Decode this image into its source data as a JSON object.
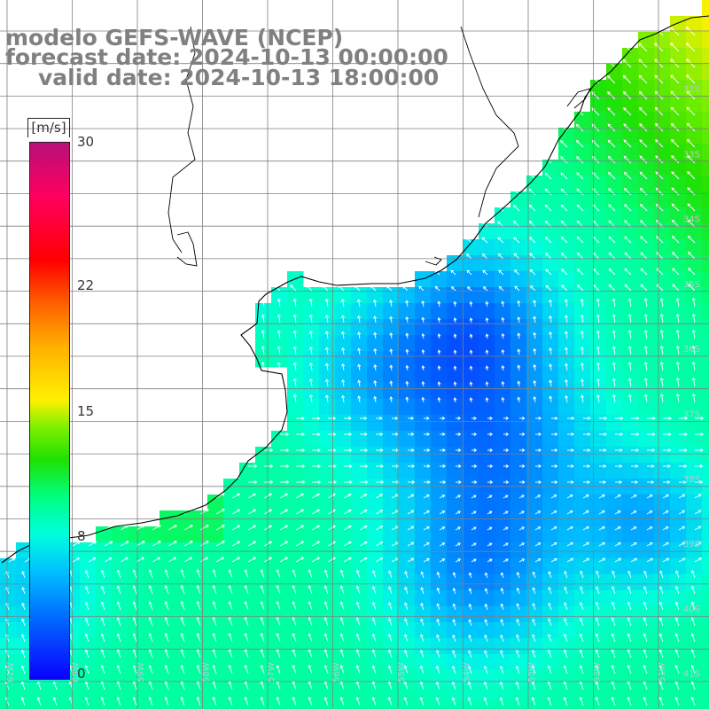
{
  "title": {
    "line1": "modelo GEFS-WAVE (NCEP)",
    "line2": "forecast date: 2024-10-13 00:00:00",
    "line3": "valid date: 2024-10-13 18:00:00"
  },
  "colorbar": {
    "unit": "[m/s]",
    "ticks": [
      {
        "label": "30",
        "value": 30
      },
      {
        "label": "22",
        "value": 22
      },
      {
        "label": "15",
        "value": 15
      },
      {
        "label": "8",
        "value": 8
      },
      {
        "label": "0",
        "value": 0
      }
    ],
    "range": [
      0,
      30
    ],
    "colors": [
      "#0a00ff",
      "#00c0ff",
      "#00ffdd",
      "#20e000",
      "#fff000",
      "#ff6000",
      "#ff0000",
      "#b8107a"
    ]
  },
  "map": {
    "lat_labels": [
      "32S",
      "33S",
      "34S",
      "35S",
      "36S",
      "37S",
      "38S",
      "39S",
      "40S",
      "41S"
    ],
    "lon_labels": [
      "61W",
      "60W",
      "59W",
      "58W",
      "57W",
      "56W",
      "55W",
      "54W",
      "53W",
      "52W",
      "51W"
    ],
    "ocean_color": "#1aa0ff",
    "land_color": "#ffffff",
    "grid_color": "#808080",
    "coast_color": "#000000"
  }
}
